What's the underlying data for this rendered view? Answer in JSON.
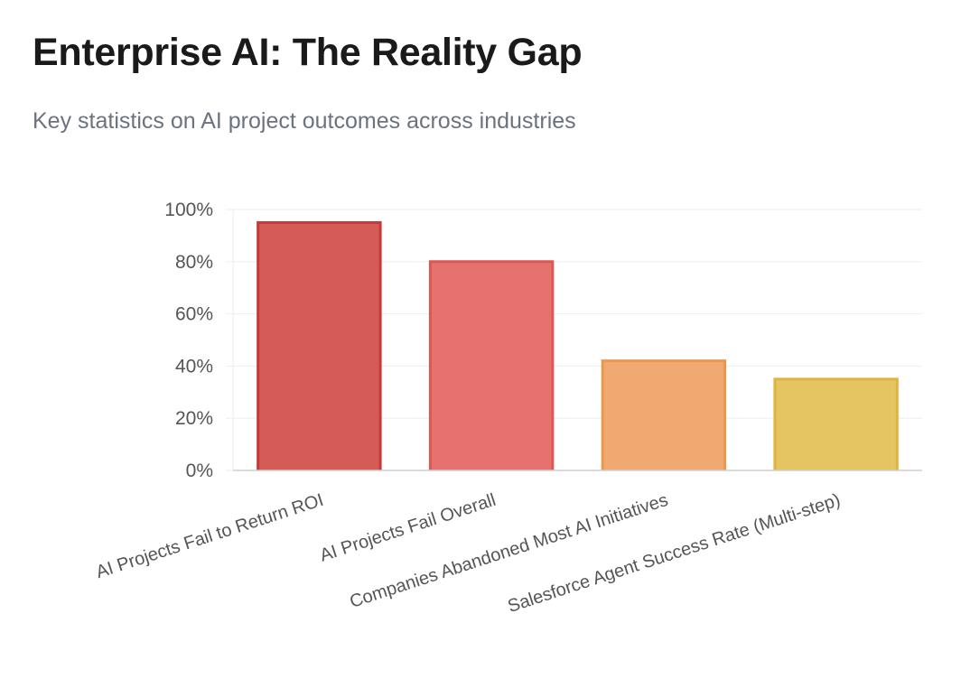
{
  "page": {
    "title": "Enterprise AI: The Reality Gap",
    "subtitle": "Key statistics on AI project outcomes across industries"
  },
  "chart_data": {
    "type": "bar",
    "title": "Enterprise AI: The Reality Gap",
    "subtitle": "Key statistics on AI project outcomes across industries",
    "xlabel": "",
    "ylabel": "",
    "ylim": [
      0,
      100
    ],
    "y_ticks": [
      0,
      20,
      40,
      60,
      80,
      100
    ],
    "y_tick_format": "percent",
    "grid": true,
    "legend": "none",
    "categories": [
      "AI Projects Fail to Return ROI",
      "AI Projects Fail Overall",
      "Companies Abandoned Most AI Initiatives",
      "Salesforce Agent Success Rate (Multi-step)"
    ],
    "values": [
      95,
      80,
      42,
      35
    ],
    "colors": [
      {
        "fill": "#d55b57",
        "border": "#c53a36"
      },
      {
        "fill": "#e5726f",
        "border": "#dd5753"
      },
      {
        "fill": "#f0aa71",
        "border": "#ea9750"
      },
      {
        "fill": "#e5c462",
        "border": "#dfb53f"
      }
    ],
    "axis_color": "#cfcfcf",
    "grid_color": "#eeeeee"
  }
}
